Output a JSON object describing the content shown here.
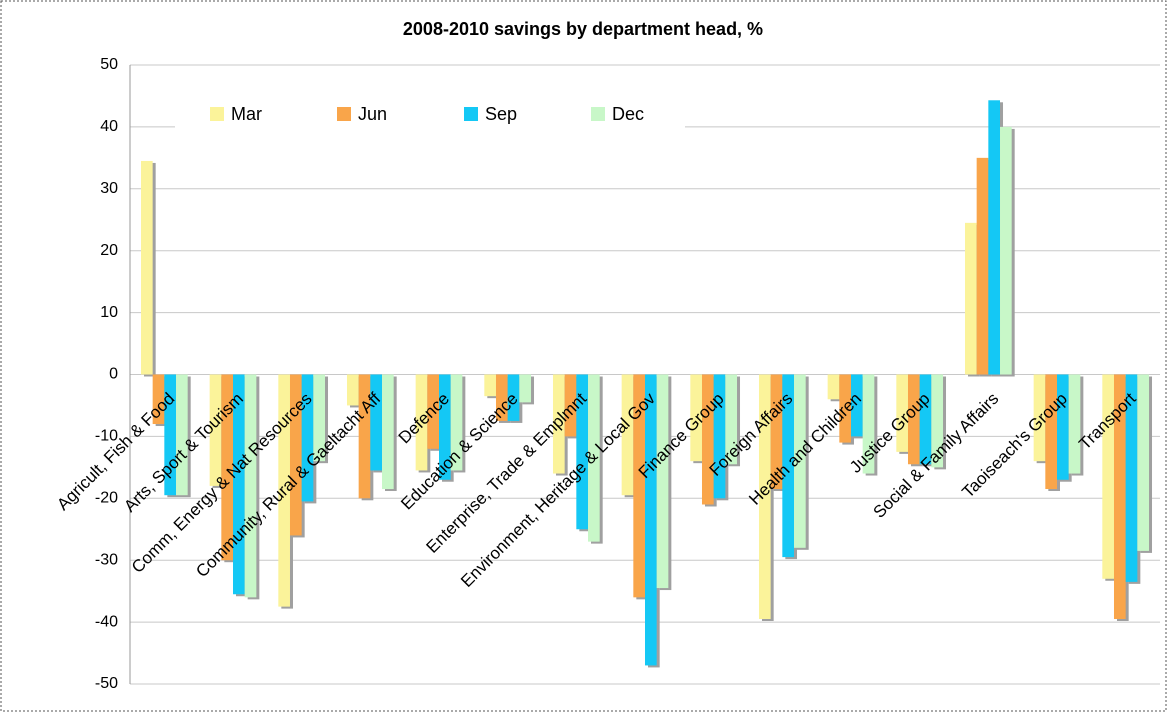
{
  "chart_data": {
    "type": "bar",
    "title": "2008-2010 savings by department head, %",
    "categories": [
      "Agricult, Fish & Food",
      "Arts, Sport & Tourism",
      "Comm, Energy & Nat Resources",
      "Community, Rural & Gaeltacht Aff",
      "Defence",
      "Education & Science",
      "Enterprise, Trade & Emplmnt",
      "Environment, Heritage & Local Gov",
      "Finance Group",
      "Foreign Affairs",
      "Health and Children",
      "Justice Group",
      "Social & Family Affairs",
      "Taoiseach's Group",
      "Transport"
    ],
    "series": [
      {
        "name": "Mar",
        "color": "#fbf39a",
        "values": [
          34.5,
          -18,
          -37.5,
          -5,
          -15.5,
          -3.5,
          -16,
          -19.5,
          -14,
          -39.5,
          -4,
          -12.5,
          24.5,
          -14,
          -33
        ]
      },
      {
        "name": "Jun",
        "color": "#f9a54a",
        "values": [
          -8,
          -30,
          -26,
          -20,
          -12,
          -7.5,
          -10,
          -36,
          -21,
          -18.5,
          -11,
          -14.5,
          35,
          -18.5,
          -39.5
        ]
      },
      {
        "name": "Sep",
        "color": "#14c8f5",
        "values": [
          -19.5,
          -35.5,
          -20.5,
          -15.5,
          -17,
          -7.5,
          -25,
          -47,
          -20,
          -29.5,
          -10,
          -14.5,
          44.3,
          -17,
          -33.5
        ]
      },
      {
        "name": "Dec",
        "color": "#c8f7c8",
        "values": [
          -19.5,
          -36,
          -14,
          -18.5,
          -15.5,
          -4.5,
          -27,
          -34.5,
          -14.5,
          -28,
          -16,
          -15,
          40,
          -16,
          -28.5
        ]
      }
    ],
    "ylim": [
      -50,
      50
    ],
    "yticks": [
      -50,
      -40,
      -30,
      -20,
      -10,
      0,
      10,
      20,
      30,
      40,
      50
    ],
    "grid": true,
    "legend": "top-left"
  }
}
